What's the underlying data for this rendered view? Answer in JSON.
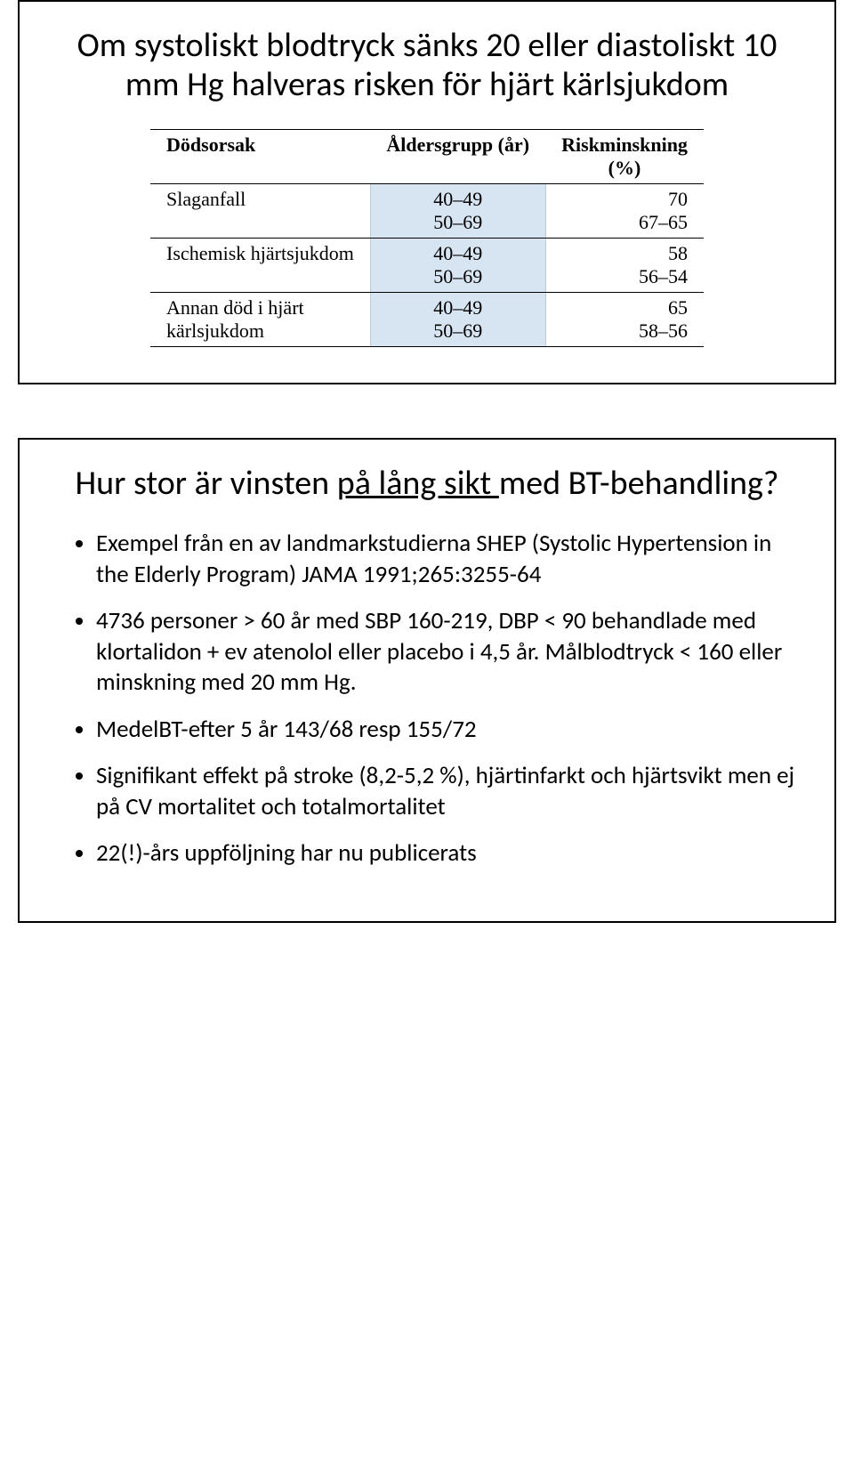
{
  "slide1": {
    "title": "Om systoliskt blodtryck sänks 20 eller diastoliskt 10 mm Hg halveras risken för hjärt kärlsjukdom",
    "table": {
      "headers": {
        "cause": "Dödsorsak",
        "age": "Åldersgrupp (år)",
        "risk_line1": "Riskminskning",
        "risk_line2": "(%)"
      },
      "rows": [
        {
          "cause": "Slaganfall",
          "age1": "40–49",
          "age2": "50–69",
          "risk1": "70",
          "risk2": "67–65"
        },
        {
          "cause": "Ischemisk hjärtsjukdom",
          "age1": "40–49",
          "age2": "50–69",
          "risk1": "58",
          "risk2": "56–54"
        },
        {
          "cause_line1": "Annan död i hjärt",
          "cause_line2": "kärlsjukdom",
          "age1": "40–49",
          "age2": "50–69",
          "risk1": "65",
          "risk2": "58–56"
        }
      ]
    }
  },
  "slide2": {
    "title": "Hur stor är vinsten på lång sikt med BT-behandling?",
    "bullets": [
      "Exempel från en av landmarkstudierna SHEP (Systolic Hypertension in the Elderly Program) JAMA 1991;265:3255-64",
      "4736 personer > 60 år med SBP 160-219, DBP < 90 behandlade med klortalidon + ev atenolol eller placebo i 4,5 år. Målblodtryck < 160 eller minskning med 20 mm Hg.",
      "MedelBT-efter 5 år 143/68 resp 155/72",
      "Signifikant effekt på stroke (8,2-5,2 %), hjärtinfarkt och hjärtsvikt men ej på CV mortalitet och totalmortalitet",
      "22(!)-års uppföljning har nu publicerats"
    ]
  }
}
